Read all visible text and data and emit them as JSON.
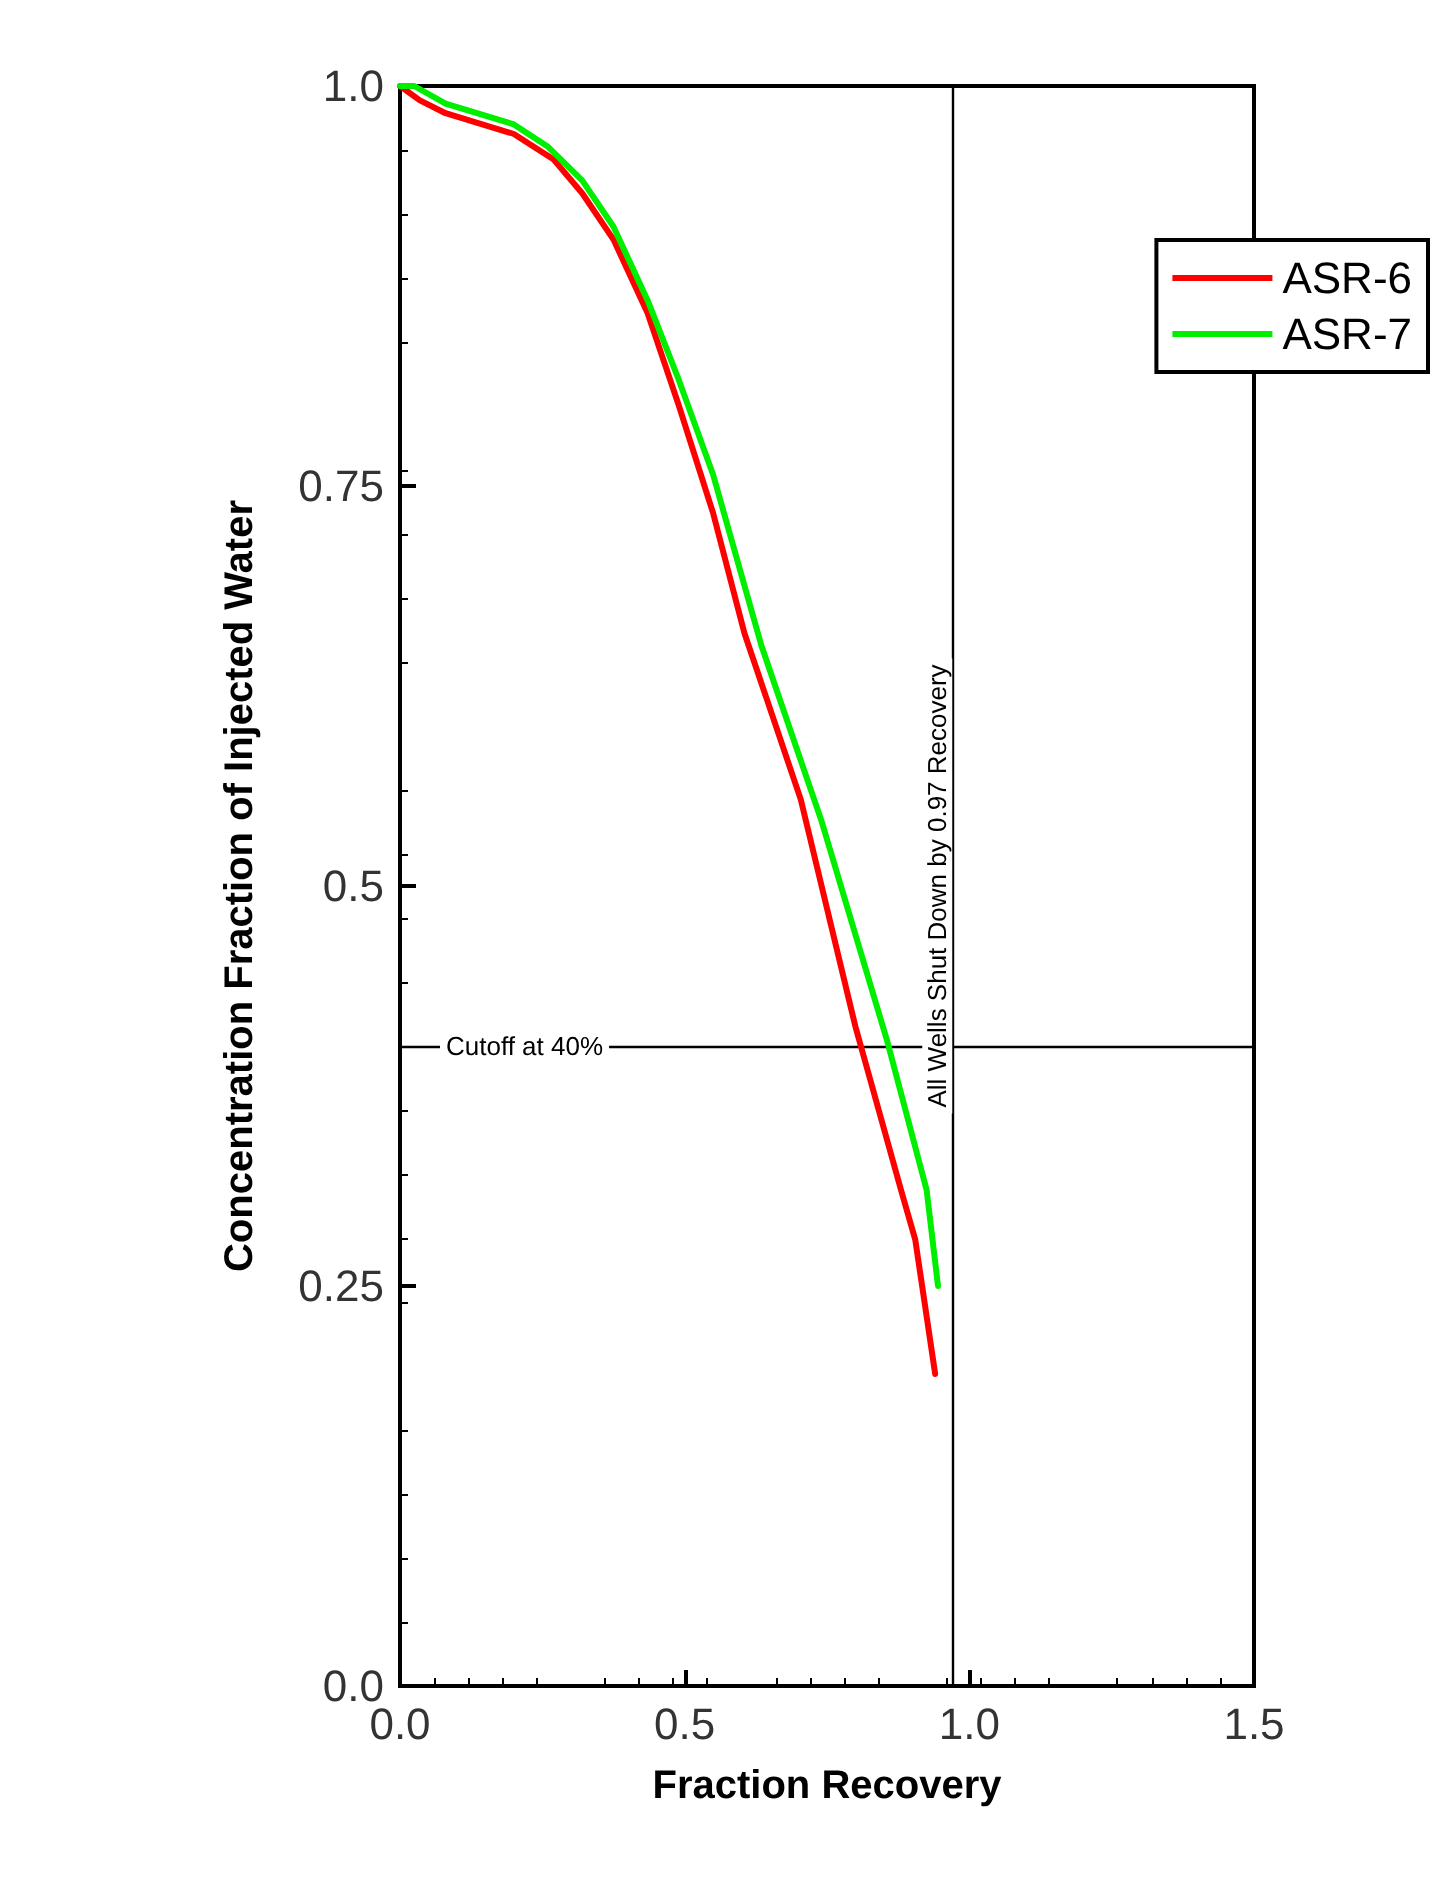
{
  "chart_data": {
    "type": "line",
    "xlabel": "Fraction Recovery",
    "ylabel": "Concentration Fraction of Injected Water",
    "xlim": [
      0,
      1.5
    ],
    "xticks": [
      {
        "value": 0,
        "label": "0.0"
      },
      {
        "value": 0.5,
        "label": "0.5"
      },
      {
        "value": 1,
        "label": "1.0"
      },
      {
        "value": 1.5,
        "label": "1.5"
      }
    ],
    "ylim": [
      0,
      1
    ],
    "yticks": [
      {
        "value": 0,
        "label": "0.0"
      },
      0.25,
      {
        "value": 0.5,
        "label": "0.5"
      },
      0.75,
      {
        "value": 1,
        "label": "1.0"
      }
    ],
    "grid": false,
    "legend": "top right",
    "marker": "none",
    "line_style": "solid",
    "ref_lines": [
      {
        "axis": "y",
        "value": 0.4,
        "label": "Cutoff at 40%",
        "color": "#000000"
      },
      {
        "axis": "x",
        "value": 0.97,
        "label": "All Wells Shut Down by 0.97 Recovery",
        "color": "#000000"
      }
    ],
    "series": [
      {
        "name": "ASR-6",
        "color": "#ff0000",
        "x": [
          0,
          0.035,
          0.08,
          0.2,
          0.27,
          0.32,
          0.375,
          0.435,
          0.49,
          0.55,
          0.605,
          0.704,
          0.8,
          0.88,
          0.905,
          0.94
        ],
        "values": [
          1.0,
          0.991,
          0.983,
          0.97,
          0.954,
          0.933,
          0.904,
          0.858,
          0.8,
          0.733,
          0.658,
          0.554,
          0.412,
          0.31,
          0.279,
          0.195
        ]
      },
      {
        "name": "ASR-7",
        "color": "#00ee00",
        "x": [
          0,
          0.025,
          0.08,
          0.2,
          0.26,
          0.32,
          0.375,
          0.435,
          0.49,
          0.55,
          0.635,
          0.74,
          0.855,
          0.925,
          0.945
        ],
        "values": [
          1.0,
          1.0,
          0.989,
          0.976,
          0.962,
          0.941,
          0.912,
          0.866,
          0.816,
          0.757,
          0.65,
          0.541,
          0.404,
          0.31,
          0.25
        ]
      }
    ]
  }
}
